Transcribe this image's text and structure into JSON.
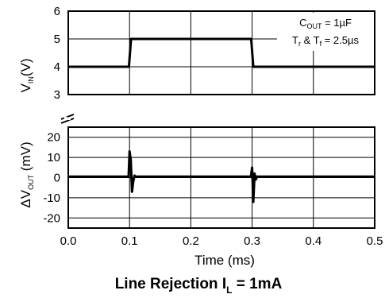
{
  "chart_data": {
    "type": "line",
    "title": "Line Rejection I",
    "title_sub": "L",
    "title_suffix": " = 1mA",
    "xlabel": "Time (ms)",
    "xlim": [
      0,
      0.5
    ],
    "x_ticks": [
      "0.0",
      "0.1",
      "0.2",
      "0.3",
      "0.4",
      "0.5"
    ],
    "grid": true,
    "annotation": {
      "line1_main": "C",
      "line1_sub": "OUT",
      "line1_rest": " = 1µF",
      "line2_a": "T",
      "line2_a_sub": "r",
      "line2_b": " & T",
      "line2_b_sub": "f",
      "line2_rest": " = 2.5µs"
    },
    "panels": [
      {
        "name": "vin",
        "ylabel_main": "V",
        "ylabel_sub": "IN",
        "ylabel_rest": "(V)",
        "ylim": [
          3,
          6
        ],
        "y_ticks": [
          "6",
          "5",
          "4",
          "3"
        ],
        "series": [
          {
            "x": [
              0,
              0.099,
              0.1025,
              0.2985,
              0.302,
              0.5
            ],
            "y": [
              4,
              4,
              5,
              5,
              4,
              4
            ]
          }
        ]
      },
      {
        "name": "dvout",
        "ylabel_main": "ΔV",
        "ylabel_sub": "OUT",
        "ylabel_rest": " (mV)",
        "ylim": [
          -25,
          25
        ],
        "y_ticks": [
          "20",
          "10",
          "0",
          "-10",
          "-20"
        ],
        "series": [
          {
            "x": [
              0,
              0.0985,
              0.1,
              0.102,
              0.104,
              0.106,
              0.108,
              0.11,
              0.5
            ],
            "y": [
              0.5,
              0.5,
              13,
              9,
              -7,
              -2,
              1,
              0.5,
              0.5
            ]
          },
          {
            "x": [
              0.298,
              0.3,
              0.302,
              0.304,
              0.306,
              0.308
            ],
            "y": [
              0.5,
              5,
              -12,
              2,
              -1,
              0.5
            ]
          }
        ]
      }
    ]
  }
}
